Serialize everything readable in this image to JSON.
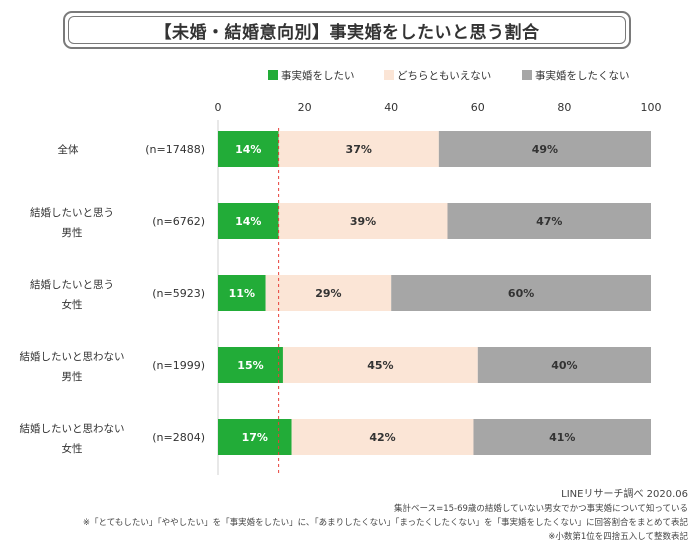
{
  "title": "【未婚・結婚意向別】事実婚をしたいと思う割合",
  "chart_data": {
    "type": "bar",
    "orientation": "horizontal",
    "stacked": true,
    "xlim": [
      0,
      100
    ],
    "ticks": [
      "0",
      "20",
      "40",
      "60",
      "80",
      "100"
    ],
    "categories": [
      {
        "label_lines": [
          "全体"
        ],
        "n": "(n=17488)"
      },
      {
        "label_lines": [
          "結婚したいと思う",
          "男性"
        ],
        "n": "(n=6762)"
      },
      {
        "label_lines": [
          "結婚したいと思う",
          "女性"
        ],
        "n": "(n=5923)"
      },
      {
        "label_lines": [
          "結婚したいと思わない",
          "男性"
        ],
        "n": "(n=1999)"
      },
      {
        "label_lines": [
          "結婚したいと思わない",
          "女性"
        ],
        "n": "(n=2804)"
      }
    ],
    "series": [
      {
        "name": "事実婚をしたい",
        "color": "#22ac38",
        "text_color": "#ffffff",
        "values": [
          14,
          14,
          11,
          15,
          17
        ],
        "labels": [
          "14%",
          "14%",
          "11%",
          "15%",
          "17%"
        ]
      },
      {
        "name": "どちらともいえない",
        "color": "#fbe5d6",
        "text_color": "#333333",
        "values": [
          37,
          39,
          29,
          45,
          42
        ],
        "labels": [
          "37%",
          "39%",
          "29%",
          "45%",
          "42%"
        ]
      },
      {
        "name": "事実婚をしたくない",
        "color": "#a6a6a6",
        "text_color": "#333333",
        "values": [
          49,
          47,
          60,
          40,
          41
        ],
        "labels": [
          "49%",
          "47%",
          "60%",
          "40%",
          "41%"
        ]
      }
    ],
    "reference_line": {
      "value": 14,
      "color": "#e8413a",
      "style": "dashed"
    },
    "legend_position": "top-right"
  },
  "notes": {
    "credit": "LINEリサーチ調べ 2020.06",
    "base": "集計ベース=15-69歳の結婚していない男女でかつ事実婚について知っている",
    "note1": "※「とてもしたい」「ややしたい」を「事実婚をしたい」に、「あまりしたくない」「まったくしたくない」を「事実婚をしたくない」に回答割合をまとめて表記",
    "note2": "※小数第1位を四捨五入して整数表記"
  }
}
